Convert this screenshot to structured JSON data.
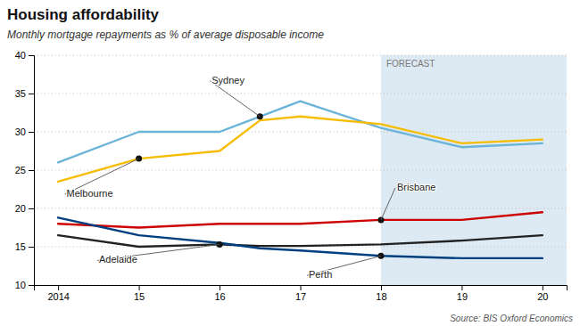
{
  "chart_data": {
    "type": "line",
    "title": "Housing affordability",
    "subtitle": "Monthly mortgage repayments as % of average disposable income",
    "source": "Source: BIS Oxford Economics",
    "forecast": {
      "label": "FORECAST",
      "start": 2018,
      "color": "#deeaf3"
    },
    "x": [
      2014,
      2015,
      2016,
      2016.5,
      2017,
      2018,
      2019,
      2020
    ],
    "series": [
      {
        "name": "Sydney",
        "color": "#6ab4d8",
        "values": [
          26.0,
          30.0,
          30.0,
          32.0,
          34.0,
          30.5,
          28.0,
          28.5
        ],
        "annotation": {
          "x": 2016.5
        }
      },
      {
        "name": "Melbourne",
        "color": "#f5bc00",
        "values": [
          23.5,
          26.5,
          27.5,
          31.5,
          32.0,
          31.0,
          28.5,
          29.0
        ],
        "annotation": {
          "x": 2015
        }
      },
      {
        "name": "Brisbane",
        "color": "#cc0000",
        "values": [
          18.0,
          17.5,
          18.0,
          18.0,
          18.0,
          18.5,
          18.5,
          19.5
        ],
        "annotation": {
          "x": 2018
        }
      },
      {
        "name": "Adelaide",
        "color": "#222222",
        "values": [
          16.5,
          15.0,
          15.3,
          15.1,
          15.1,
          15.3,
          15.8,
          16.5
        ],
        "annotation": {
          "x": 2016
        }
      },
      {
        "name": "Perth",
        "color": "#003f7f",
        "values": [
          18.8,
          16.5,
          15.5,
          14.8,
          14.5,
          13.8,
          13.5,
          13.5
        ],
        "annotation": {
          "x": 2018
        }
      }
    ],
    "xlim": [
      2013.7,
      2020.3
    ],
    "xticks": [
      2014,
      {
        "value": 2015,
        "label": "15"
      },
      {
        "value": 2016,
        "label": "16"
      },
      {
        "value": 2017,
        "label": "17"
      },
      {
        "value": 2018,
        "label": "18"
      },
      {
        "value": 2019,
        "label": "19"
      },
      {
        "value": 2020,
        "label": "20"
      }
    ],
    "ylim": [
      10,
      40
    ],
    "yticks": [
      10,
      15,
      20,
      25,
      30,
      35,
      40
    ],
    "grid": true
  }
}
